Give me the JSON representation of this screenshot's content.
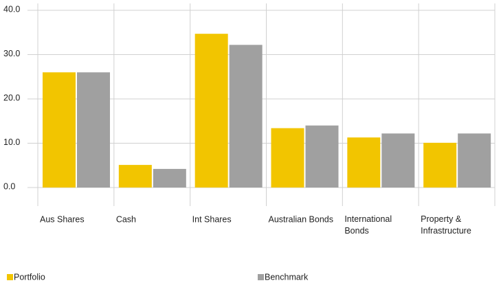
{
  "chart_data": {
    "type": "bar",
    "categories": [
      "Aus Shares",
      "Cash",
      "Int Shares",
      "Australian Bonds",
      "International Bonds",
      "Property & Infrastructure"
    ],
    "series": [
      {
        "name": "Portfolio",
        "color": "#f2c500",
        "values": [
          26.0,
          5.1,
          34.7,
          13.4,
          11.3,
          10.1
        ]
      },
      {
        "name": "Benchmark",
        "color": "#a0a0a0",
        "values": [
          26.0,
          4.2,
          32.2,
          14.0,
          12.2,
          12.2
        ]
      }
    ],
    "ylim": [
      0,
      40
    ],
    "yticks": [
      {
        "value": 0,
        "label": "0.0"
      },
      {
        "value": 10,
        "label": "10.0"
      },
      {
        "value": 20,
        "label": "20.0"
      },
      {
        "value": 30,
        "label": "30.0"
      },
      {
        "value": 40,
        "label": "40.0"
      }
    ],
    "grid": true
  }
}
